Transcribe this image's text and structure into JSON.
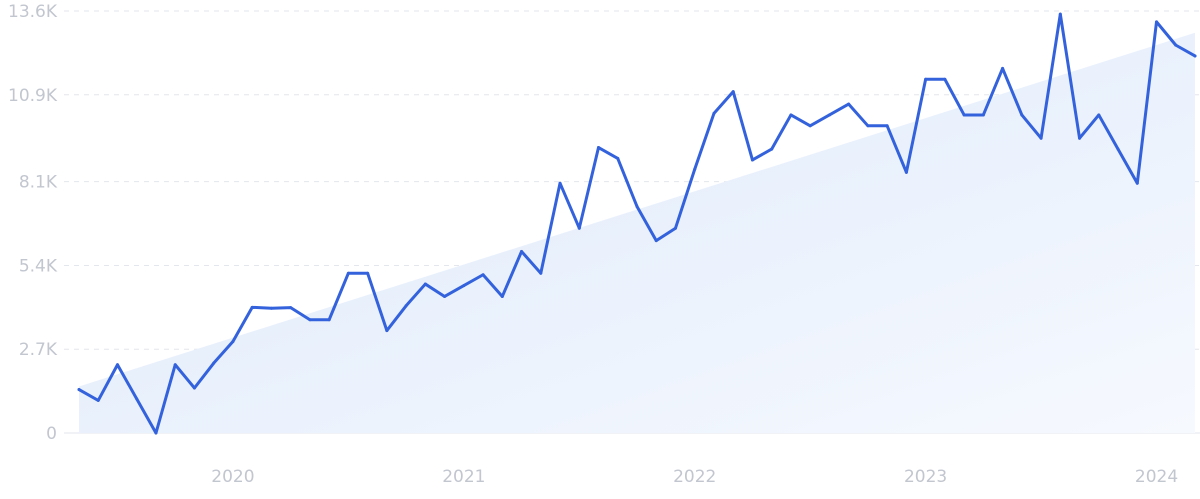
{
  "chart_data": {
    "type": "line",
    "title": "",
    "xlabel": "",
    "ylabel": "",
    "x_ticks": [
      {
        "label": "2020",
        "x": "2020-01"
      },
      {
        "label": "2021",
        "x": "2021-01"
      },
      {
        "label": "2022",
        "x": "2022-01"
      },
      {
        "label": "2023",
        "x": "2023-01"
      },
      {
        "label": "2024",
        "x": "2024-01"
      }
    ],
    "y_ticks": [
      {
        "label": "0",
        "value": 0
      },
      {
        "label": "2.7K",
        "value": 2700
      },
      {
        "label": "5.4K",
        "value": 5400
      },
      {
        "label": "8.1K",
        "value": 8100
      },
      {
        "label": "10.9K",
        "value": 10900
      },
      {
        "label": "13.6K",
        "value": 13600
      }
    ],
    "ylim": [
      0,
      13600
    ],
    "xlim": [
      "2019-05",
      "2024-03"
    ],
    "grid": true,
    "line_color": "#3362dc",
    "trend_fill_color": "#e8f1fd",
    "trend": {
      "start": [
        "2019-05",
        1500
      ],
      "end": [
        "2024-03",
        12900
      ]
    },
    "series": [
      {
        "name": "",
        "points": [
          [
            "2019-05",
            1400
          ],
          [
            "2019-06",
            1050
          ],
          [
            "2019-07",
            2200
          ],
          [
            "2019-08",
            1100
          ],
          [
            "2019-09",
            0
          ],
          [
            "2019-10",
            2200
          ],
          [
            "2019-11",
            1450
          ],
          [
            "2019-12",
            2250
          ],
          [
            "2020-01",
            2950
          ],
          [
            "2020-02",
            4050
          ],
          [
            "2020-03",
            4020
          ],
          [
            "2020-04",
            4040
          ],
          [
            "2020-05",
            3650
          ],
          [
            "2020-06",
            3650
          ],
          [
            "2020-07",
            5150
          ],
          [
            "2020-08",
            5150
          ],
          [
            "2020-09",
            3300
          ],
          [
            "2020-10",
            4100
          ],
          [
            "2020-11",
            4800
          ],
          [
            "2020-12",
            4400
          ],
          [
            "2021-01",
            4750
          ],
          [
            "2021-02",
            5100
          ],
          [
            "2021-03",
            4400
          ],
          [
            "2021-04",
            5850
          ],
          [
            "2021-05",
            5150
          ],
          [
            "2021-06",
            8050
          ],
          [
            "2021-07",
            6600
          ],
          [
            "2021-08",
            9200
          ],
          [
            "2021-09",
            8850
          ],
          [
            "2021-10",
            7300
          ],
          [
            "2021-11",
            6200
          ],
          [
            "2021-12",
            6600
          ],
          [
            "2022-01",
            8500
          ],
          [
            "2022-02",
            10300
          ],
          [
            "2022-03",
            11000
          ],
          [
            "2022-04",
            8800
          ],
          [
            "2022-05",
            9150
          ],
          [
            "2022-06",
            10250
          ],
          [
            "2022-07",
            9900
          ],
          [
            "2022-08",
            10250
          ],
          [
            "2022-09",
            10600
          ],
          [
            "2022-10",
            9900
          ],
          [
            "2022-11",
            9900
          ],
          [
            "2022-12",
            8400
          ],
          [
            "2023-01",
            11400
          ],
          [
            "2023-02",
            11400
          ],
          [
            "2023-03",
            10250
          ],
          [
            "2023-04",
            10250
          ],
          [
            "2023-05",
            11750
          ],
          [
            "2023-06",
            10250
          ],
          [
            "2023-07",
            9500
          ],
          [
            "2023-08",
            13500
          ],
          [
            "2023-09",
            9500
          ],
          [
            "2023-10",
            10250
          ],
          [
            "2023-11",
            9150
          ],
          [
            "2023-12",
            8050
          ],
          [
            "2024-01",
            13250
          ],
          [
            "2024-02",
            12500
          ],
          [
            "2024-03",
            12150
          ]
        ]
      }
    ]
  }
}
